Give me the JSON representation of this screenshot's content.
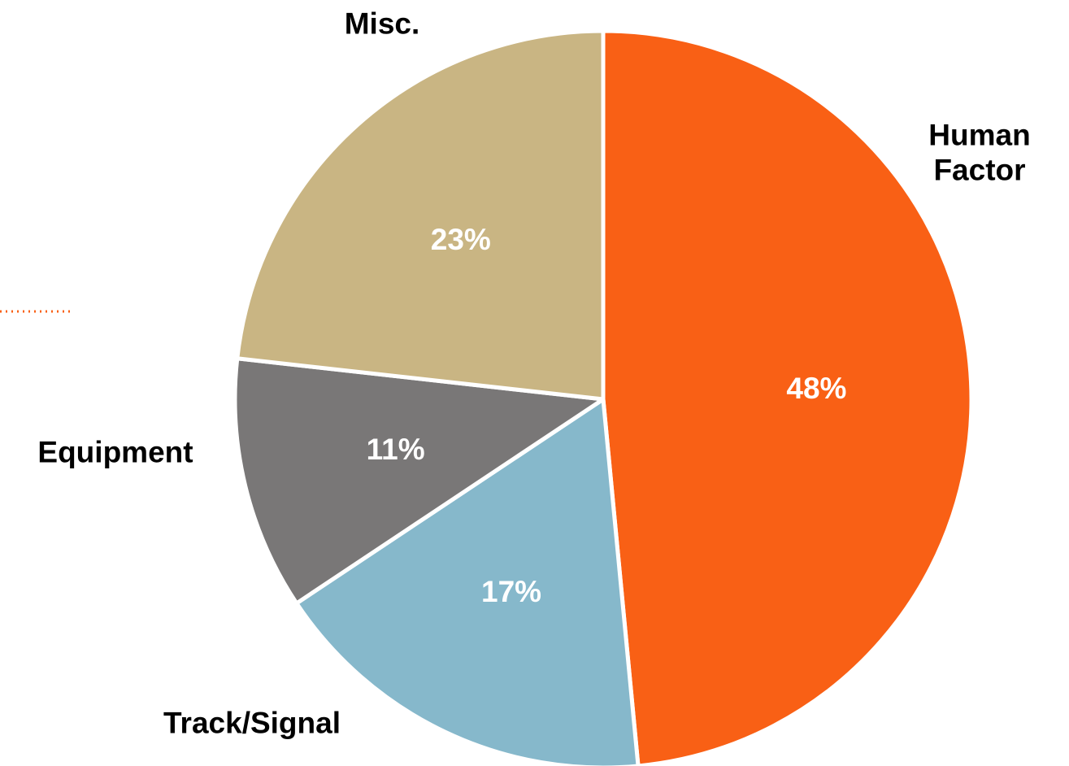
{
  "chart_data": {
    "type": "pie",
    "categories": [
      "Human Factor",
      "Track/Signal",
      "Equipment",
      "Misc."
    ],
    "values": [
      48,
      17,
      11,
      23
    ],
    "value_labels": [
      "48%",
      "17%",
      "11%",
      "23%"
    ],
    "colors": [
      "#f96015",
      "#86b8cb",
      "#797777",
      "#c9b583"
    ]
  }
}
